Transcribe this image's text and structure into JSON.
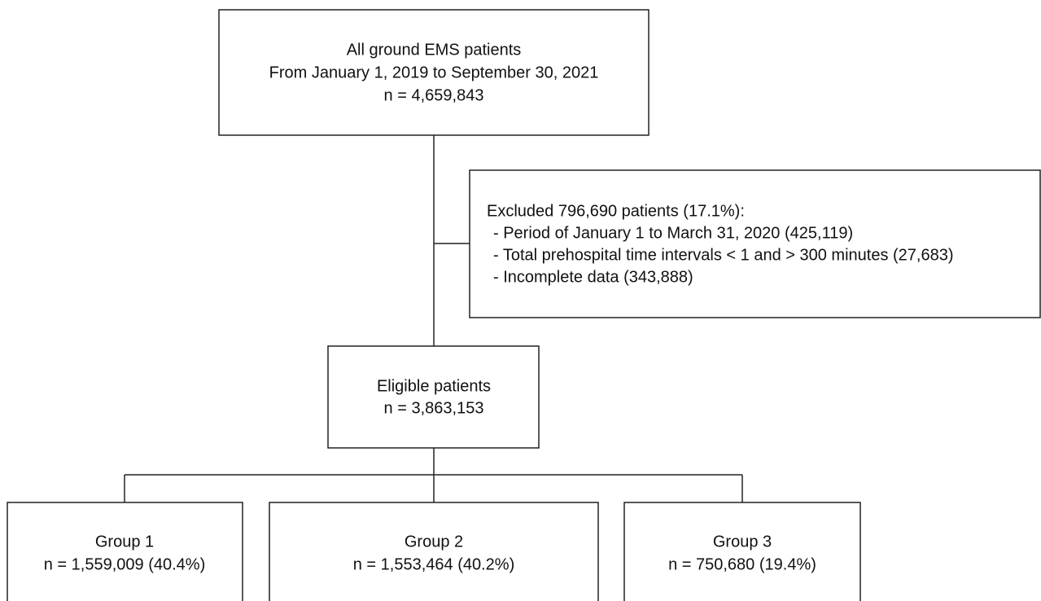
{
  "nodes": [
    {
      "lines": [
        "All ground EMS patients",
        "From January 1, 2019 to September 30, 2021",
        "n = 4,659,843"
      ]
    },
    {
      "lines": [
        "Excluded 796,690 patients (17.1%):",
        "- Period of January 1 to March 31, 2020 (425,119)",
        "- Total prehospital time intervals < 1 and > 300 minutes (27,683)",
        "- Incomplete data (343,888)"
      ]
    },
    {
      "lines": [
        "Eligible patients",
        "n = 3,863,153"
      ]
    },
    {
      "lines": [
        "Group 1",
        "n = 1,559,009 (40.4%)"
      ]
    },
    {
      "lines": [
        "Group 2",
        "n = 1,553,464 (40.2%)"
      ]
    },
    {
      "lines": [
        "Group 3",
        "n = 750,680 (19.4%)"
      ]
    }
  ]
}
